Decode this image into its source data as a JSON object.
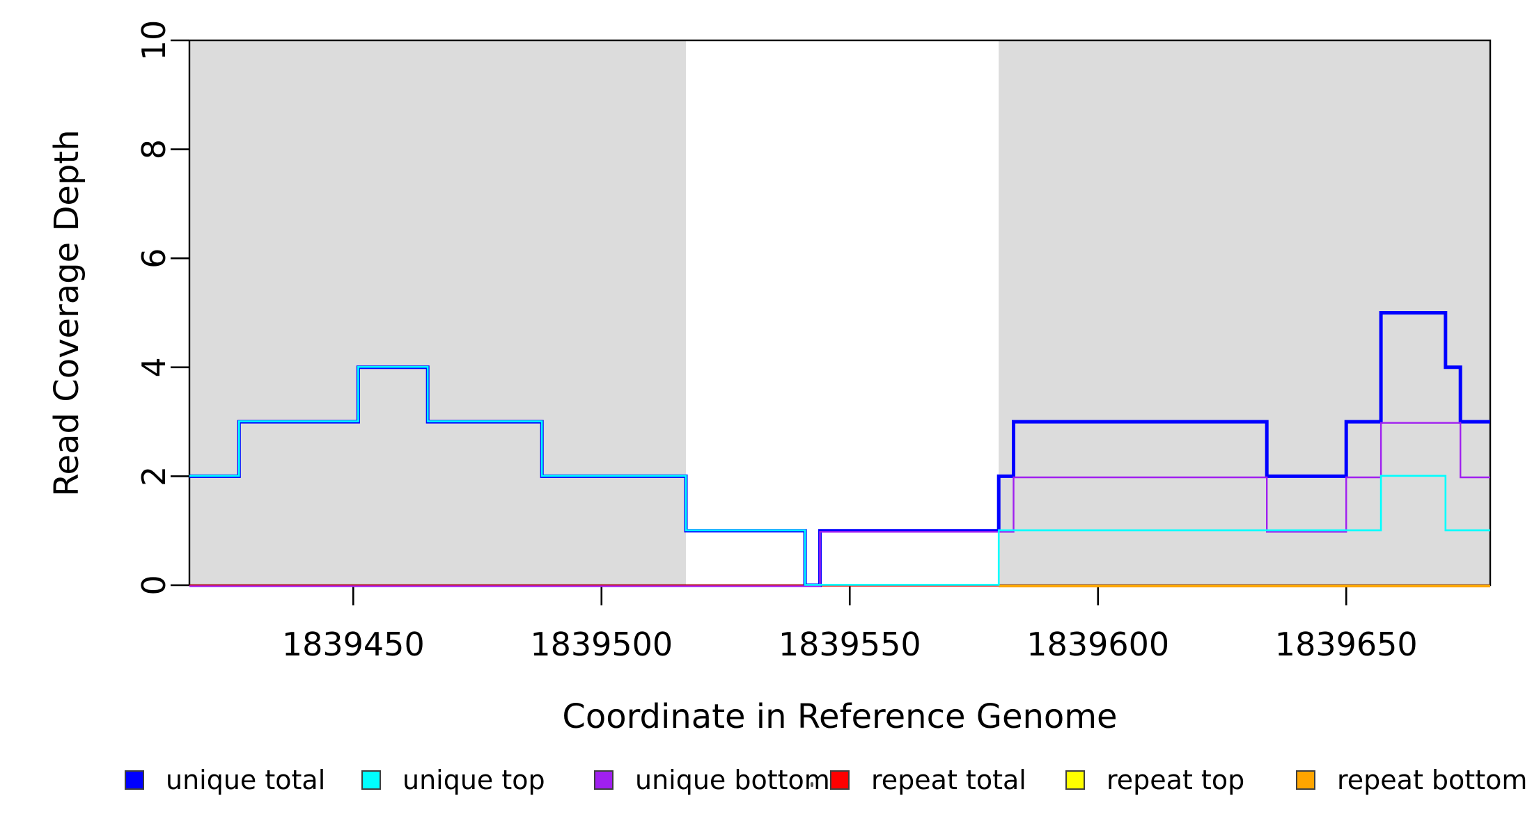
{
  "figure": {
    "background": "#FFFFFF",
    "axis_color": "#000000"
  },
  "chart_data": {
    "type": "line",
    "step": true,
    "title": "",
    "xlabel": "Coordinate in Reference Genome",
    "ylabel": "Read Coverage Depth",
    "xlim": [
      1839417,
      1839679
    ],
    "ylim": [
      0,
      10
    ],
    "x_ticks": [
      1839450,
      1839500,
      1839550,
      1839600,
      1839650
    ],
    "x_tick_labels": [
      "1839450",
      "1839500",
      "1839550",
      "1839600",
      "1839650"
    ],
    "y_ticks": [
      0,
      2,
      4,
      6,
      8,
      10
    ],
    "y_tick_labels": [
      "0",
      "2",
      "4",
      "6",
      "8",
      "10"
    ],
    "grid": false,
    "legend_position": "bottom-horizontal",
    "shade_color": "#DCDCDC",
    "shaded_regions": [
      {
        "from": 1839417,
        "to": 1839517
      },
      {
        "from": 1839580,
        "to": 1839679
      }
    ],
    "series": [
      {
        "name": "unique total",
        "color": "#0000FF",
        "steps": [
          [
            1839417,
            2
          ],
          [
            1839427,
            3
          ],
          [
            1839451,
            4
          ],
          [
            1839465,
            3
          ],
          [
            1839488,
            2
          ],
          [
            1839517,
            1
          ],
          [
            1839541,
            0
          ],
          [
            1839544,
            1
          ],
          [
            1839580,
            2
          ],
          [
            1839583,
            3
          ],
          [
            1839634,
            2
          ],
          [
            1839650,
            3
          ],
          [
            1839657,
            5
          ],
          [
            1839670,
            4
          ],
          [
            1839673,
            3
          ]
        ]
      },
      {
        "name": "unique top",
        "color": "#00FFFF",
        "steps": [
          [
            1839417,
            2
          ],
          [
            1839427,
            3
          ],
          [
            1839451,
            4
          ],
          [
            1839465,
            3
          ],
          [
            1839488,
            2
          ],
          [
            1839517,
            1
          ],
          [
            1839541,
            0
          ],
          [
            1839580,
            1
          ],
          [
            1839657,
            2
          ],
          [
            1839670,
            1
          ]
        ]
      },
      {
        "name": "unique bottom",
        "color": "#A020F0",
        "steps": [
          [
            1839417,
            0
          ],
          [
            1839544,
            1
          ],
          [
            1839583,
            2
          ],
          [
            1839634,
            1
          ],
          [
            1839650,
            2
          ],
          [
            1839657,
            3
          ],
          [
            1839673,
            2
          ]
        ]
      },
      {
        "name": "repeat total",
        "color": "#FF0000",
        "steps": [
          [
            1839417,
            0
          ]
        ]
      },
      {
        "name": "repeat top",
        "color": "#FFFF00",
        "steps": [
          [
            1839580,
            0
          ]
        ]
      },
      {
        "name": "repeat bottom",
        "color": "#FFA500",
        "steps": [
          [
            1839580,
            0
          ]
        ]
      }
    ],
    "draw_order": [
      "repeat total",
      "repeat top",
      "repeat bottom",
      "unique total",
      "unique bottom",
      "unique top"
    ]
  },
  "legend": {
    "items": [
      {
        "label": "unique total",
        "color": "#0000FF"
      },
      {
        "label": "unique top",
        "color": "#00FFFF"
      },
      {
        "label": "unique bottom",
        "color": "#A020F0"
      },
      {
        "label": "repeat total",
        "color": "#FF0000"
      },
      {
        "label": "repeat top",
        "color": "#FFFF00"
      },
      {
        "label": "repeat bottom",
        "color": "#FFA500"
      }
    ],
    "stray_mark": "·"
  }
}
